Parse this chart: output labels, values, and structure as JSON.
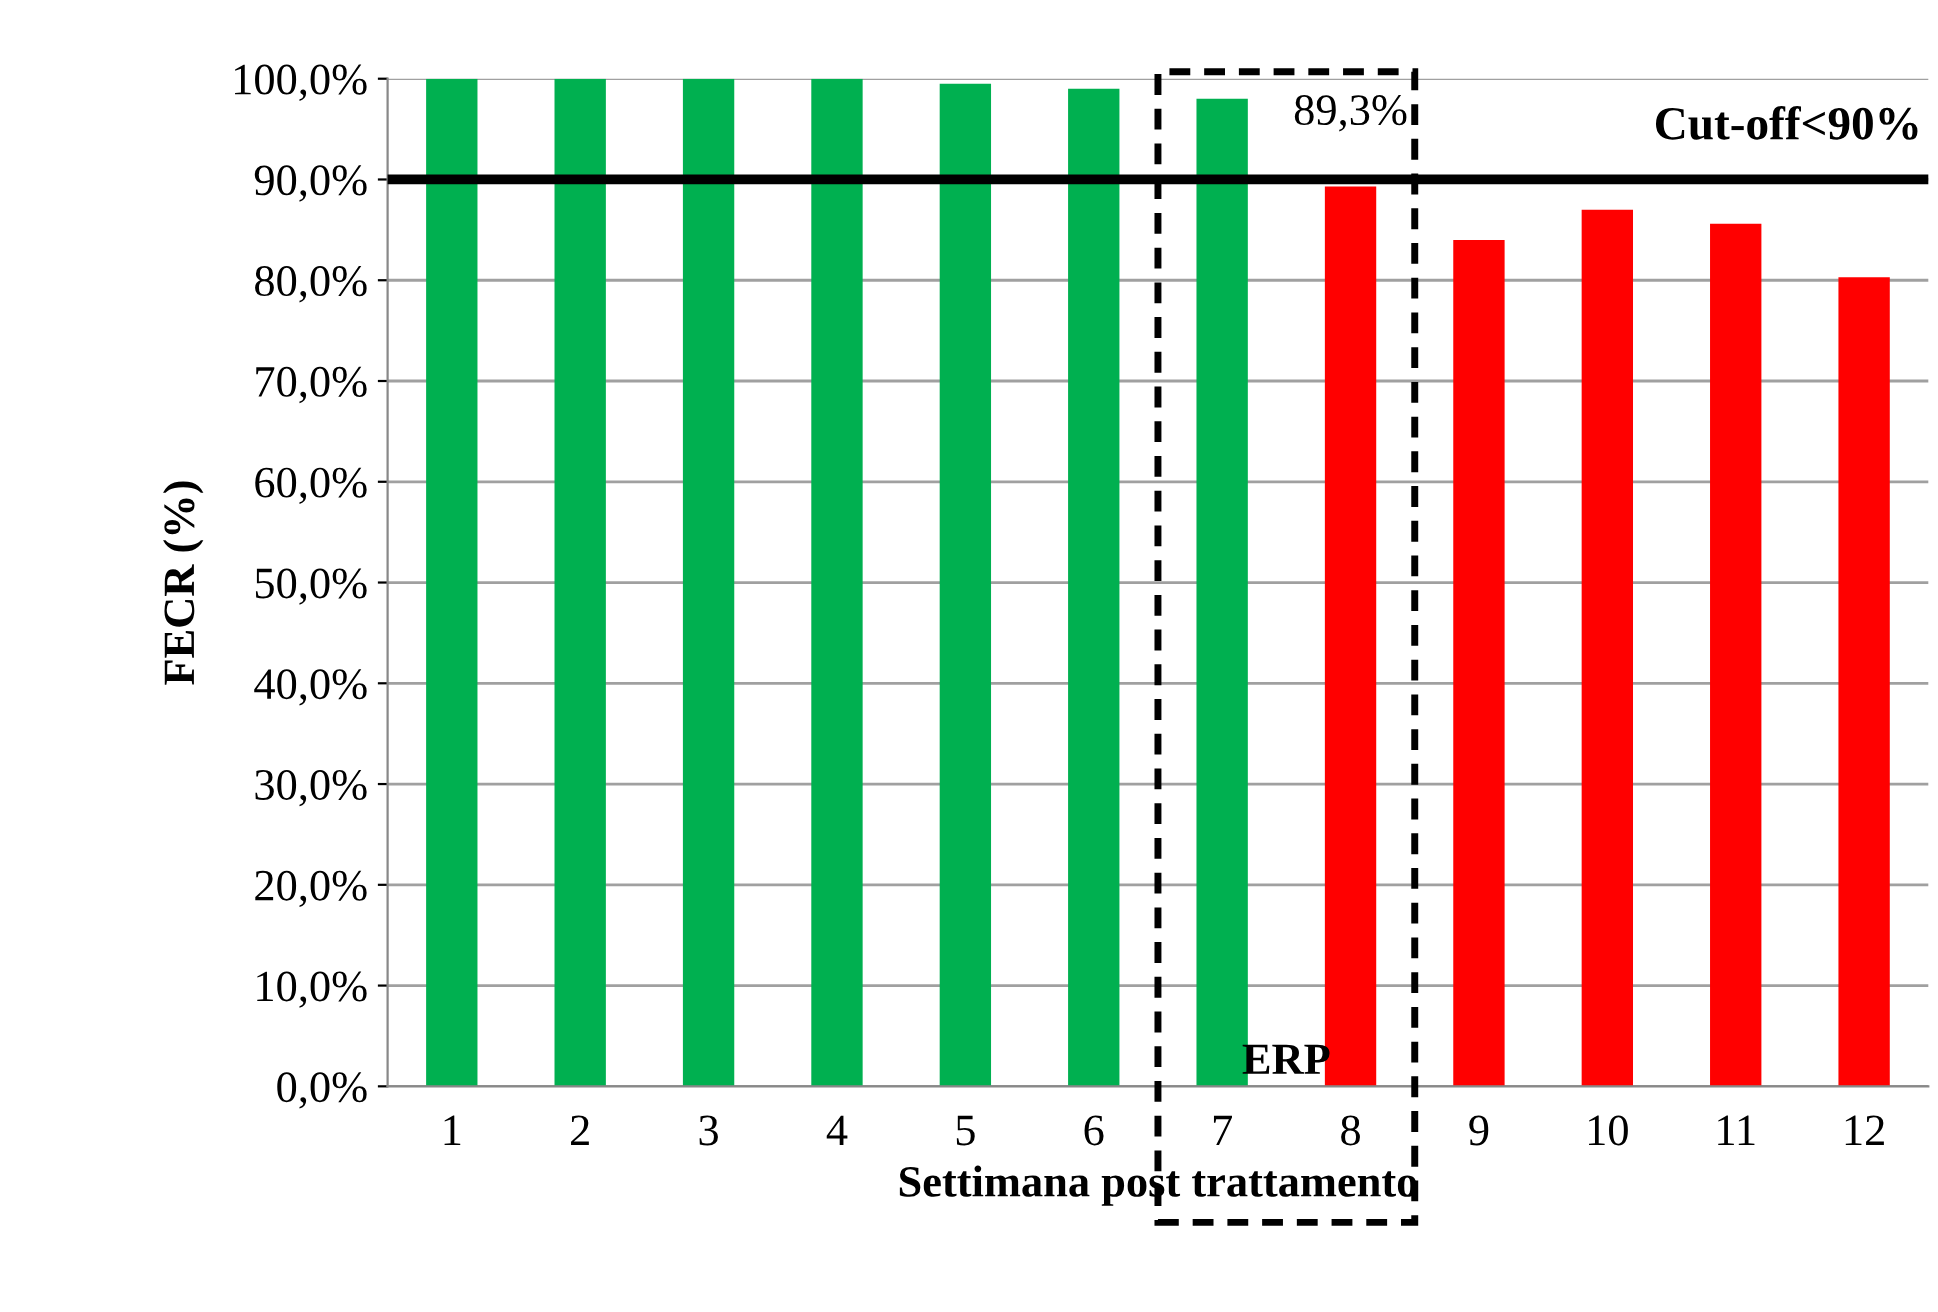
{
  "chart_data": {
    "type": "bar",
    "xlabel": "Settimana post trattamento",
    "ylabel": "FECR (%)",
    "categories": [
      "1",
      "2",
      "3",
      "4",
      "5",
      "6",
      "7",
      "8",
      "9",
      "10",
      "11",
      "12"
    ],
    "values": [
      100,
      100,
      100,
      100,
      99.5,
      99.0,
      98.0,
      89.3,
      84.0,
      87.0,
      85.6,
      80.3
    ],
    "colors": [
      "#00b050",
      "#00b050",
      "#00b050",
      "#00b050",
      "#00b050",
      "#00b050",
      "#00b050",
      "#ff0000",
      "#ff0000",
      "#ff0000",
      "#ff0000",
      "#ff0000"
    ],
    "value_labels": [
      null,
      null,
      null,
      null,
      null,
      null,
      null,
      "89,3%",
      null,
      null,
      null,
      null
    ],
    "ylim": [
      0,
      100
    ],
    "yticks": [
      {
        "value": 0,
        "label": "0,0%"
      },
      {
        "value": 10,
        "label": "10,0%"
      },
      {
        "value": 20,
        "label": "20,0%"
      },
      {
        "value": 30,
        "label": "30,0%"
      },
      {
        "value": 40,
        "label": "40,0%"
      },
      {
        "value": 50,
        "label": "50,0%"
      },
      {
        "value": 60,
        "label": "60,0%"
      },
      {
        "value": 70,
        "label": "70,0%"
      },
      {
        "value": 80,
        "label": "80,0%"
      },
      {
        "value": 90,
        "label": "90,0%"
      },
      {
        "value": 100,
        "label": "100,0%"
      }
    ],
    "ref_lines": [
      {
        "axis": "y",
        "value": 90,
        "label": "Cut-off<90%",
        "color": "#000000"
      }
    ],
    "annotations": [
      "ERP"
    ],
    "grid": "y"
  }
}
